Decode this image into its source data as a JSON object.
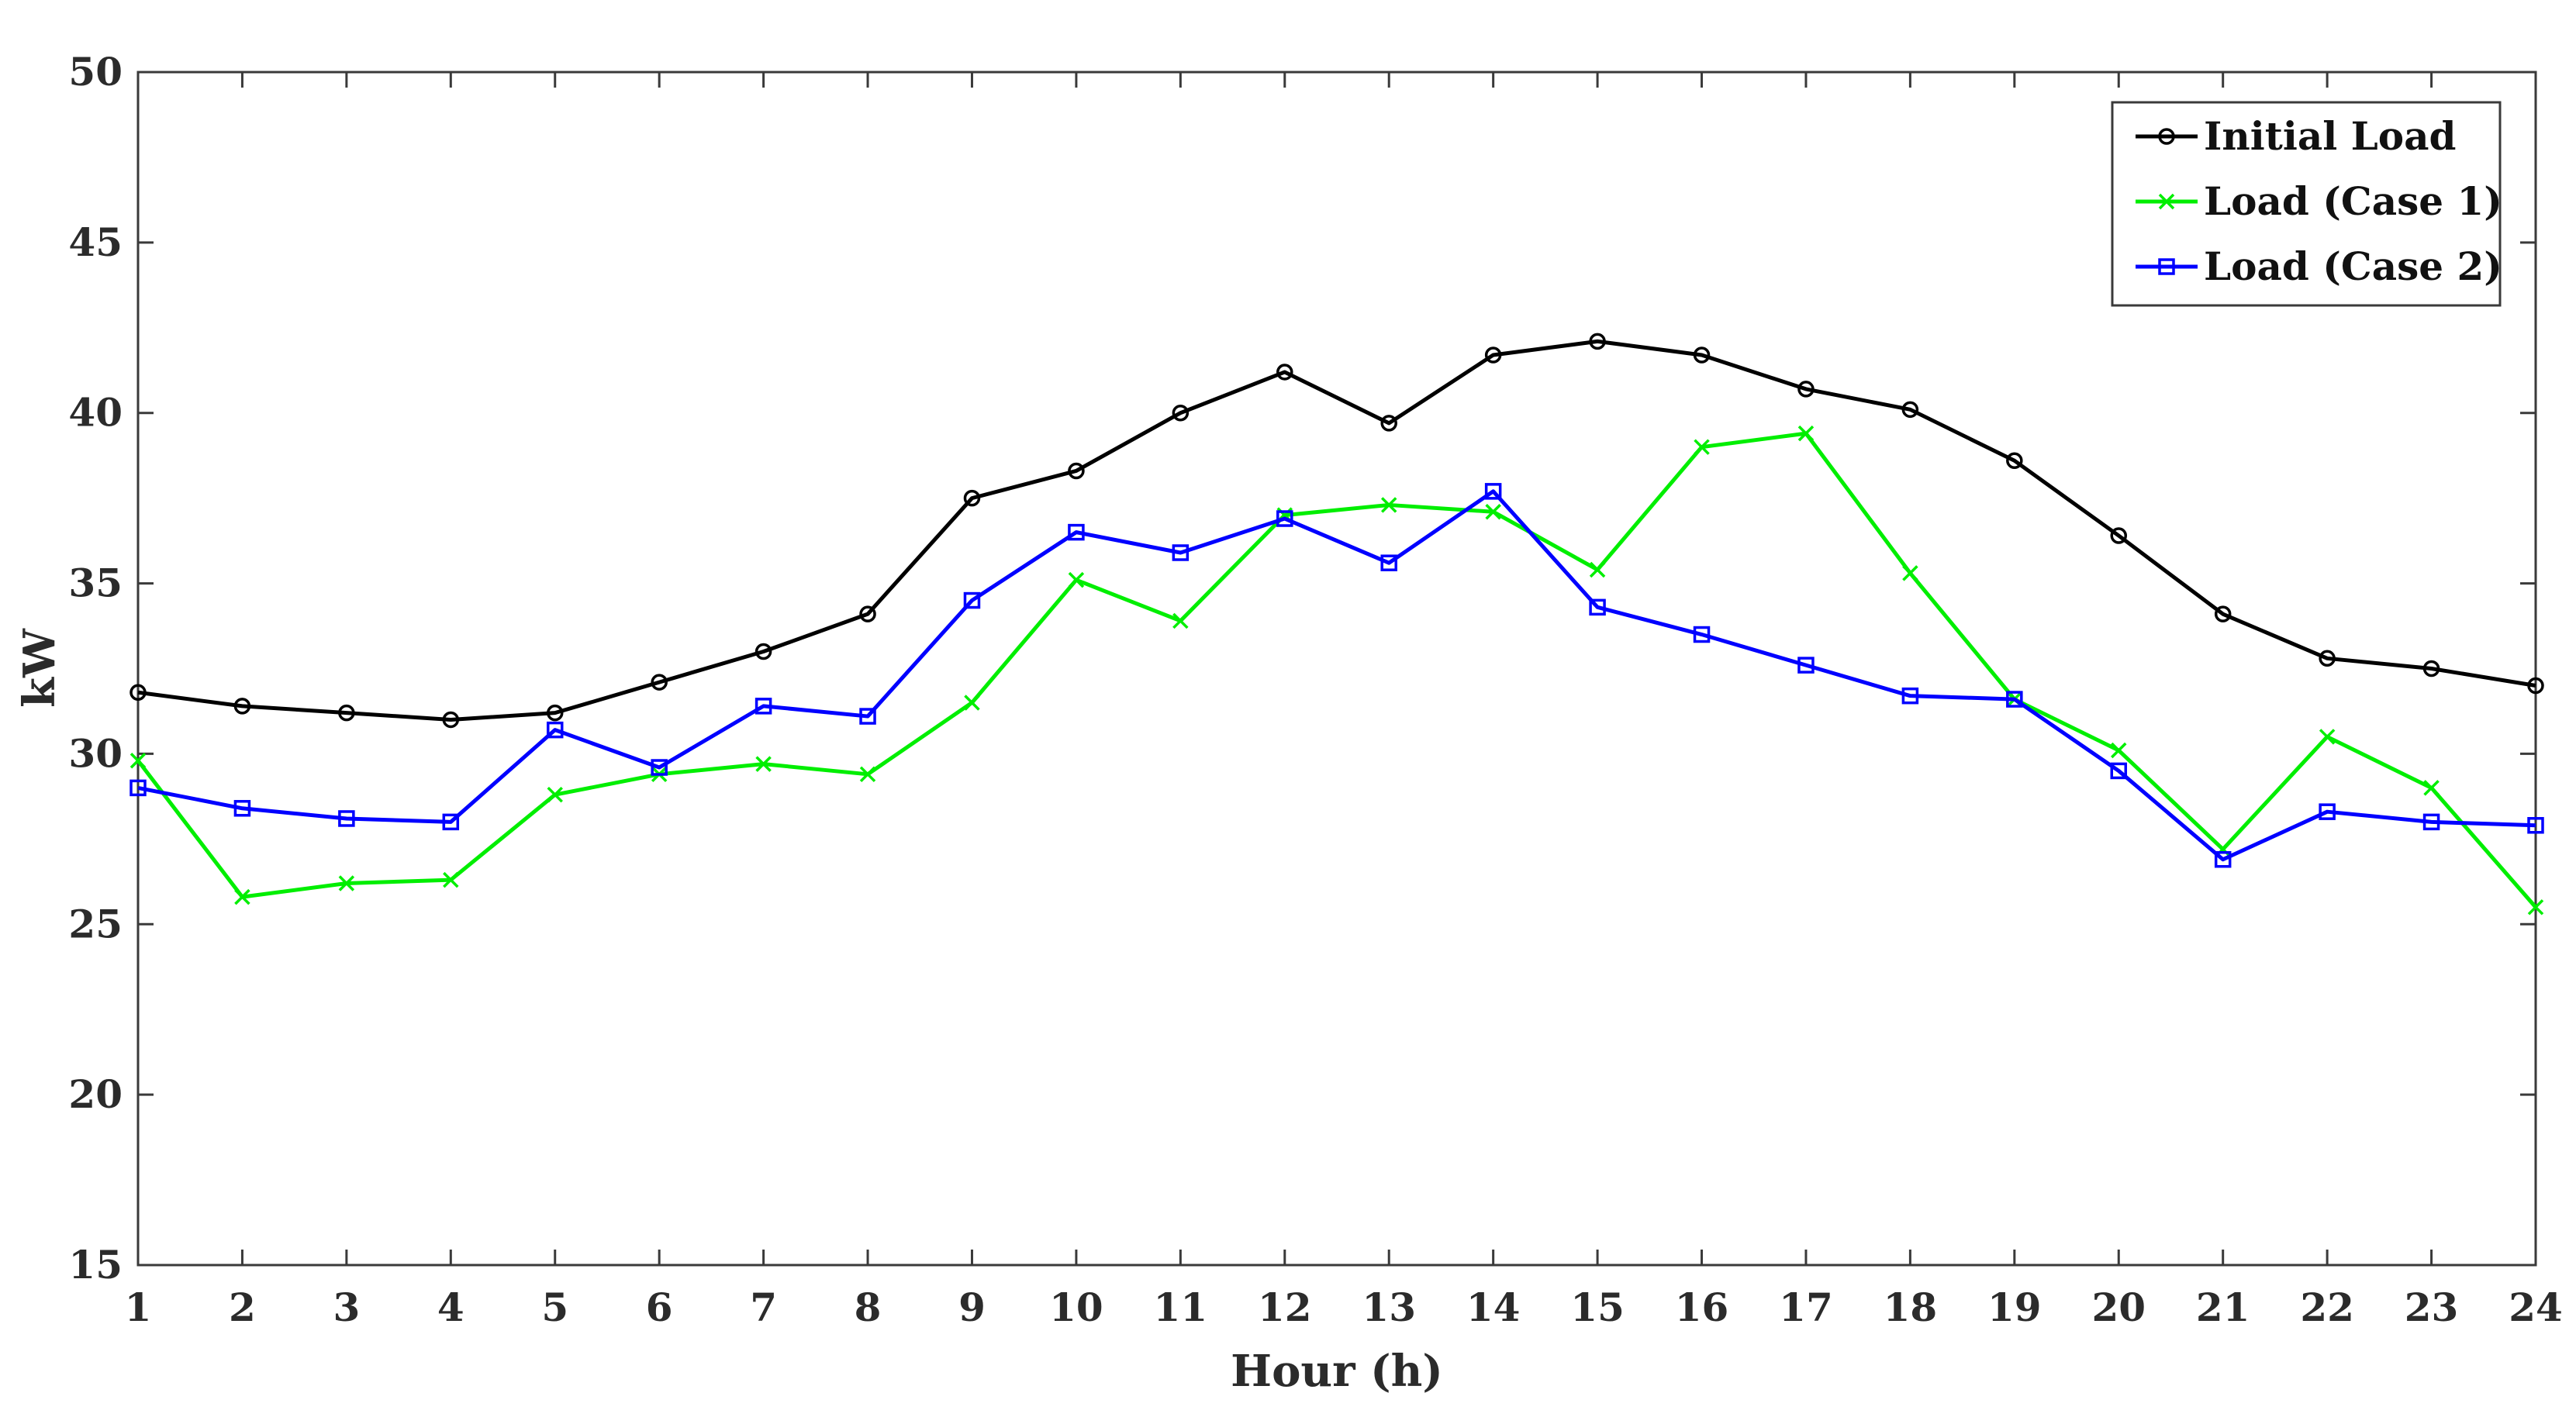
{
  "chart_data": {
    "type": "line",
    "title": "",
    "xlabel": "Hour (h)",
    "ylabel": "kW",
    "x": [
      1,
      2,
      3,
      4,
      5,
      6,
      7,
      8,
      9,
      10,
      11,
      12,
      13,
      14,
      15,
      16,
      17,
      18,
      19,
      20,
      21,
      22,
      23,
      24
    ],
    "xlim": [
      1,
      24
    ],
    "ylim": [
      15,
      50
    ],
    "yticks": [
      15,
      20,
      25,
      30,
      35,
      40,
      45,
      50
    ],
    "xtick_labels": [
      "1",
      "2",
      "3",
      "4",
      "5",
      "6",
      "7",
      "8",
      "9",
      "10",
      "11",
      "12",
      "13",
      "14",
      "15",
      "16",
      "17",
      "18",
      "19",
      "20",
      "21",
      "22",
      "23",
      "24"
    ],
    "ytick_labels": [
      "15",
      "20",
      "25",
      "30",
      "35",
      "40",
      "45",
      "50"
    ],
    "grid": false,
    "legend_position": "top-right",
    "series": [
      {
        "name": "Initial Load",
        "color": "#000000",
        "marker": "circle",
        "values": [
          31.8,
          31.4,
          31.2,
          31.0,
          31.2,
          32.1,
          33.0,
          34.1,
          37.5,
          38.3,
          40.0,
          41.2,
          39.7,
          41.7,
          42.1,
          41.7,
          40.7,
          40.1,
          38.6,
          36.4,
          34.1,
          32.8,
          32.5,
          32.0
        ]
      },
      {
        "name": "Load (Case 1)",
        "color": "#00ee00",
        "marker": "x",
        "values": [
          29.8,
          25.8,
          26.2,
          26.3,
          28.8,
          29.4,
          29.7,
          29.4,
          31.5,
          35.1,
          33.9,
          37.0,
          37.3,
          37.1,
          35.4,
          39.0,
          39.4,
          35.3,
          31.6,
          30.1,
          27.2,
          30.5,
          29.0,
          25.5
        ]
      },
      {
        "name": "Load (Case 2)",
        "color": "#0000ff",
        "marker": "square",
        "values": [
          29.0,
          28.4,
          28.1,
          28.0,
          30.7,
          29.6,
          31.4,
          31.1,
          34.5,
          36.5,
          35.9,
          36.9,
          35.6,
          37.7,
          34.3,
          33.5,
          32.6,
          31.7,
          31.6,
          29.5,
          26.9,
          28.3,
          28.0,
          27.9
        ]
      }
    ]
  }
}
